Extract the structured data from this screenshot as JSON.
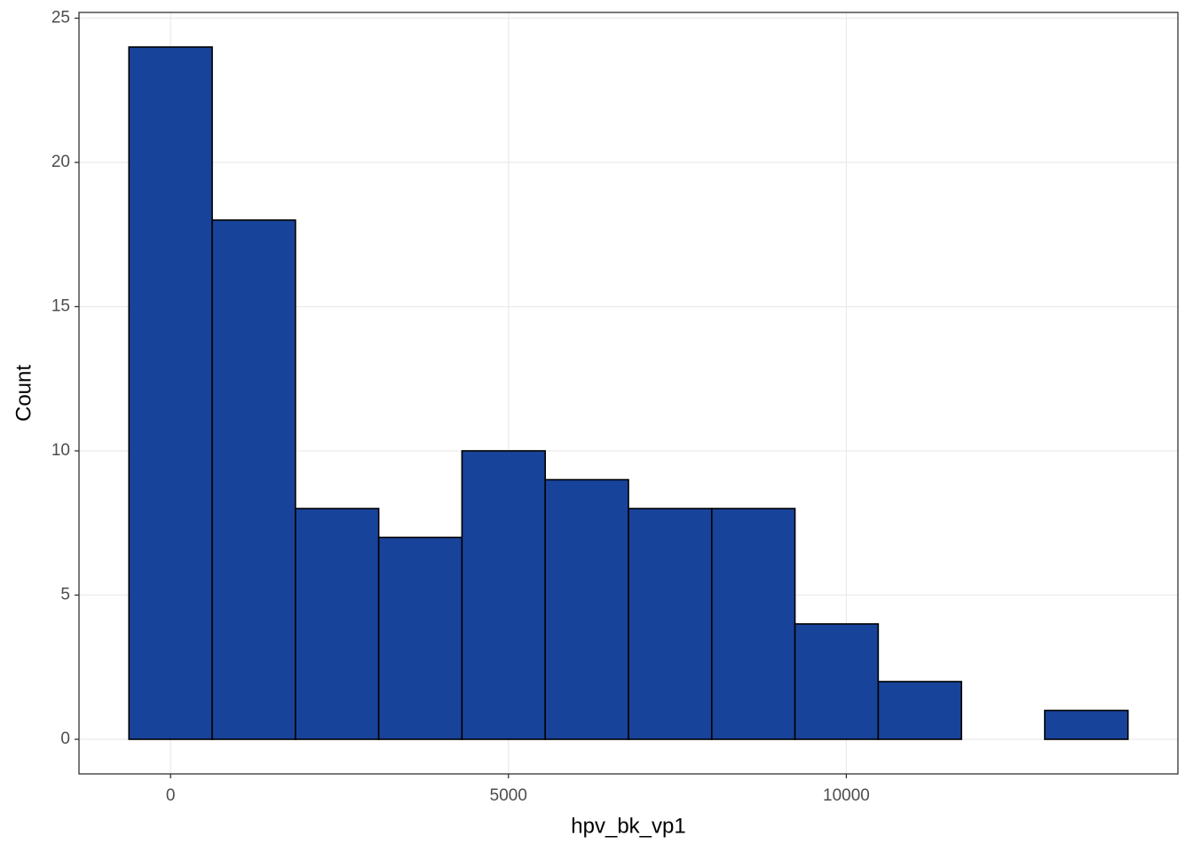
{
  "chart_data": {
    "type": "histogram",
    "x_label": "hpv_bk_vp1",
    "y_label": "Count",
    "bins": [
      -616,
      616,
      1848,
      3080,
      4312,
      5544,
      6776,
      8008,
      9240,
      10472,
      11704,
      12936,
      14168
    ],
    "values": [
      24,
      18,
      8,
      7,
      10,
      9,
      8,
      8,
      4,
      2,
      0,
      1
    ],
    "color": "#18439a",
    "edge_color": "#000000",
    "xlim": [
      -1355,
      14907
    ],
    "xticks": [
      0,
      5000,
      10000
    ],
    "ylim": [
      -1.2,
      25.2
    ],
    "yticks": [
      0,
      5,
      10,
      15,
      20,
      25
    ],
    "grid": true
  }
}
